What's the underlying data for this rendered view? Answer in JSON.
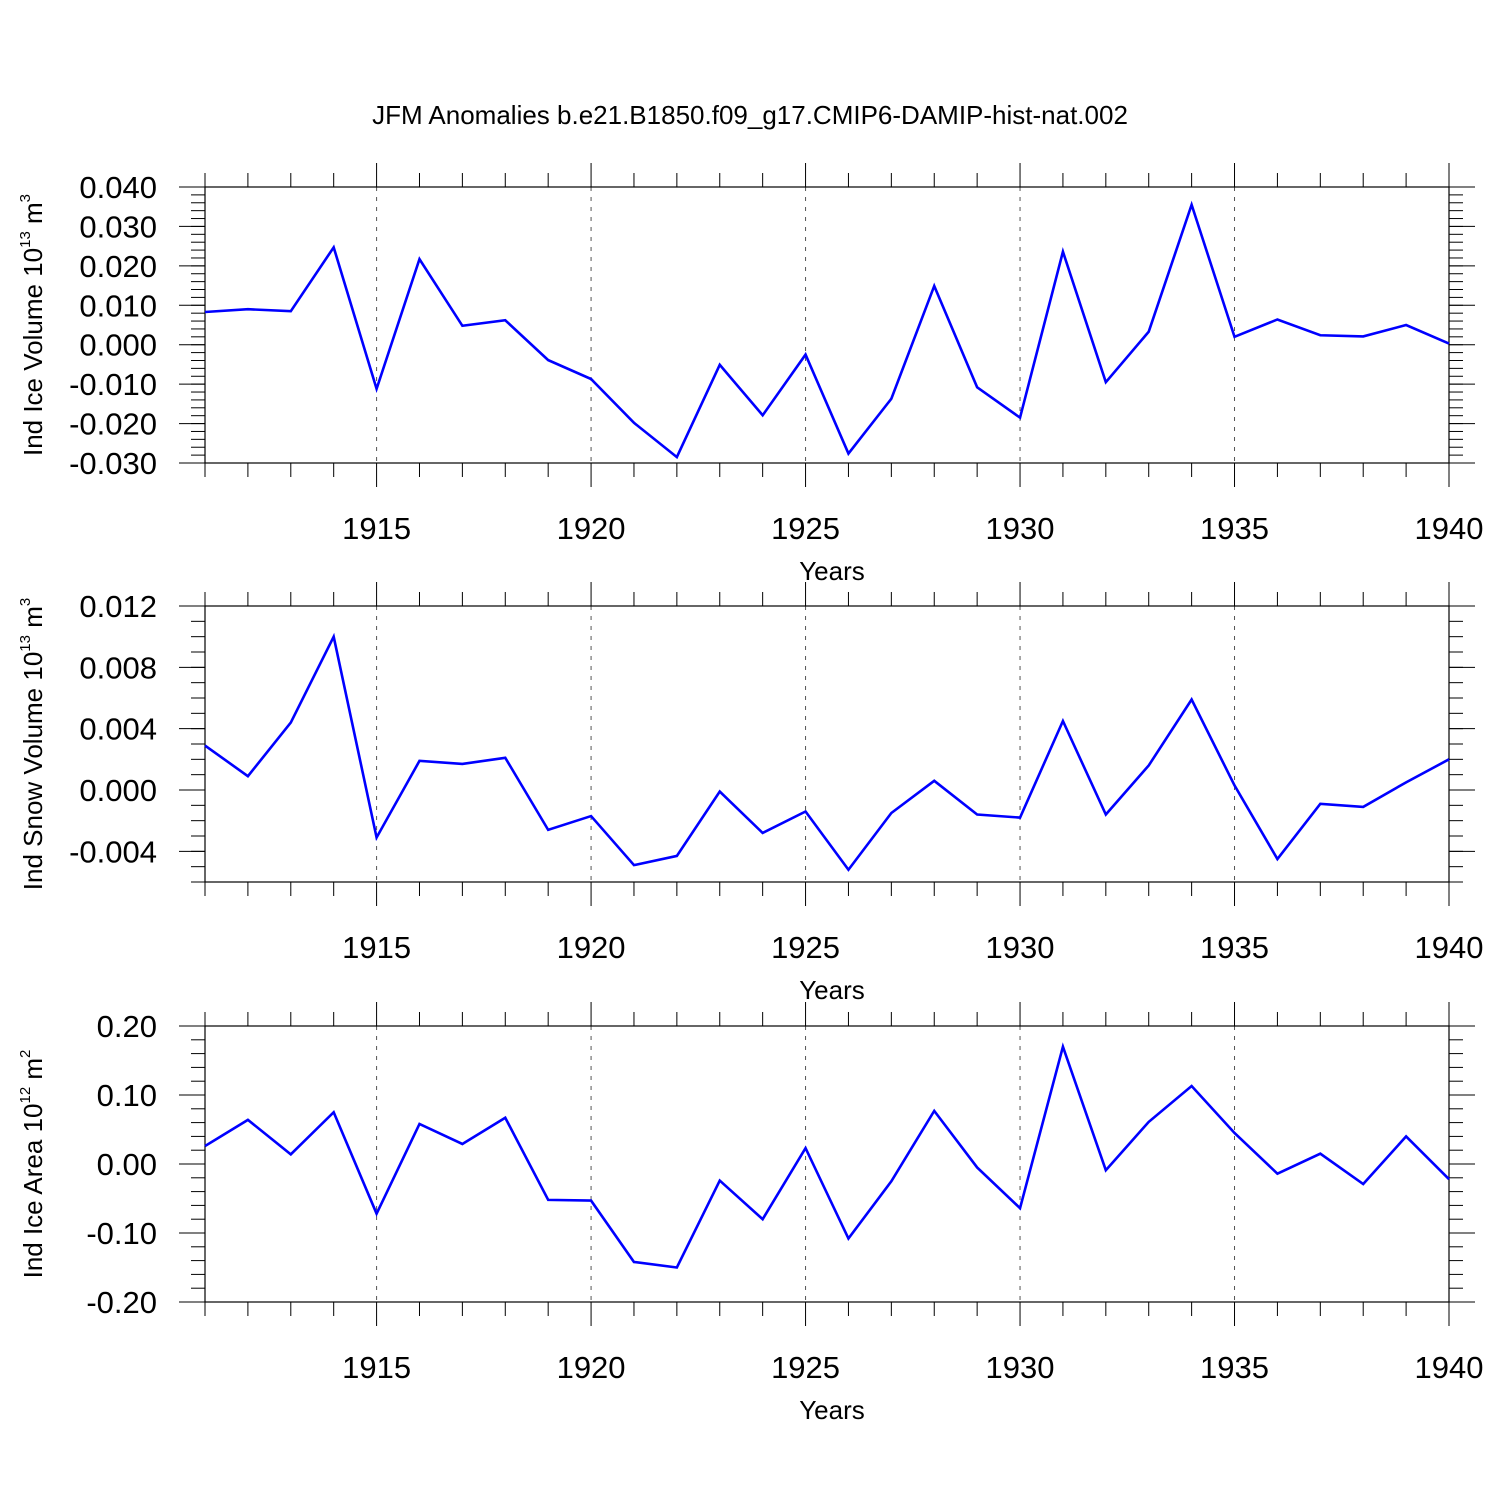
{
  "figure": {
    "title": "JFM Anomalies b.e21.B1850.f09_g17.CMIP6-DAMIP-hist-nat.002",
    "line_color": "#0000ff"
  },
  "chart_data": [
    {
      "type": "line",
      "title": "",
      "xlabel": "Years",
      "ylabel": {
        "prefix": "Ind Ice Volume 10",
        "exp": "13",
        "unit": " m",
        "unit_exp": "3"
      },
      "xlim": [
        1911,
        1940
      ],
      "ylim": [
        -0.03,
        0.04
      ],
      "xticks": [
        1915,
        1920,
        1925,
        1930,
        1935,
        1940
      ],
      "yticks": [
        -0.03,
        -0.02,
        -0.01,
        0.0,
        0.01,
        0.02,
        0.03,
        0.04
      ],
      "ytick_labels": [
        "-0.030",
        "-0.020",
        "-0.010",
        "0.000",
        "0.010",
        "0.020",
        "0.030",
        "0.040"
      ],
      "yminor": 0.002,
      "series": [
        {
          "name": "Ind Ice Volume",
          "x": [
            1911,
            1912,
            1913,
            1914,
            1915,
            1916,
            1917,
            1918,
            1919,
            1920,
            1921,
            1922,
            1923,
            1924,
            1925,
            1926,
            1927,
            1928,
            1929,
            1930,
            1931,
            1932,
            1933,
            1934,
            1935,
            1936,
            1937,
            1938,
            1939,
            1940
          ],
          "values": [
            0.0083,
            0.009,
            0.0085,
            0.0247,
            -0.0112,
            0.0217,
            0.0048,
            0.0062,
            -0.0039,
            -0.0087,
            -0.0198,
            -0.0285,
            -0.0051,
            -0.0179,
            -0.0025,
            -0.0276,
            -0.0137,
            0.0149,
            -0.0108,
            -0.0185,
            0.0236,
            -0.0095,
            0.0033,
            0.0355,
            0.002,
            0.0064,
            0.0024,
            0.0021,
            0.005,
            0.0003
          ]
        }
      ]
    },
    {
      "type": "line",
      "title": "",
      "xlabel": "Years",
      "ylabel": {
        "prefix": "Ind Snow Volume 10",
        "exp": "13",
        "unit": " m",
        "unit_exp": "3"
      },
      "xlim": [
        1911,
        1940
      ],
      "ylim": [
        -0.006,
        0.012
      ],
      "xticks": [
        1915,
        1920,
        1925,
        1930,
        1935,
        1940
      ],
      "yticks": [
        -0.004,
        0.0,
        0.004,
        0.008,
        0.012
      ],
      "ytick_labels": [
        "-0.004",
        "0.000",
        "0.004",
        "0.008",
        "0.012"
      ],
      "yminor": 0.001,
      "series": [
        {
          "name": "Ind Snow Volume",
          "x": [
            1911,
            1912,
            1913,
            1914,
            1915,
            1916,
            1917,
            1918,
            1919,
            1920,
            1921,
            1922,
            1923,
            1924,
            1925,
            1926,
            1927,
            1928,
            1929,
            1930,
            1931,
            1932,
            1933,
            1934,
            1935,
            1936,
            1937,
            1938,
            1939,
            1940
          ],
          "values": [
            0.0029,
            0.0009,
            0.0044,
            0.01,
            -0.0031,
            0.0019,
            0.0017,
            0.0021,
            -0.0026,
            -0.0017,
            -0.0049,
            -0.0043,
            -0.0001,
            -0.0028,
            -0.0014,
            -0.0052,
            -0.0015,
            0.0006,
            -0.0016,
            -0.0018,
            0.0045,
            -0.0016,
            0.0016,
            0.0059,
            0.0003,
            -0.0045,
            -0.0009,
            -0.0011,
            0.0005,
            0.002
          ]
        }
      ]
    },
    {
      "type": "line",
      "title": "",
      "xlabel": "Years",
      "ylabel": {
        "prefix": "Ind Ice Area 10",
        "exp": "12",
        "unit": " m",
        "unit_exp": "2"
      },
      "xlim": [
        1911,
        1940
      ],
      "ylim": [
        -0.2,
        0.2
      ],
      "xticks": [
        1915,
        1920,
        1925,
        1930,
        1935,
        1940
      ],
      "yticks": [
        -0.2,
        -0.1,
        0.0,
        0.1,
        0.2
      ],
      "ytick_labels": [
        "-0.20",
        "-0.10",
        "0.00",
        "0.10",
        "0.20"
      ],
      "yminor": 0.02,
      "series": [
        {
          "name": "Ind Ice Area",
          "x": [
            1911,
            1912,
            1913,
            1914,
            1915,
            1916,
            1917,
            1918,
            1919,
            1920,
            1921,
            1922,
            1923,
            1924,
            1925,
            1926,
            1927,
            1928,
            1929,
            1930,
            1931,
            1932,
            1933,
            1934,
            1935,
            1936,
            1937,
            1938,
            1939,
            1940
          ],
          "values": [
            0.026,
            0.064,
            0.014,
            0.075,
            -0.072,
            0.058,
            0.029,
            0.067,
            -0.052,
            -0.053,
            -0.142,
            -0.15,
            -0.024,
            -0.08,
            0.023,
            -0.108,
            -0.025,
            0.077,
            -0.005,
            -0.064,
            0.17,
            -0.009,
            0.061,
            0.113,
            0.045,
            -0.014,
            0.015,
            -0.029,
            0.04,
            -0.022
          ]
        }
      ]
    }
  ]
}
